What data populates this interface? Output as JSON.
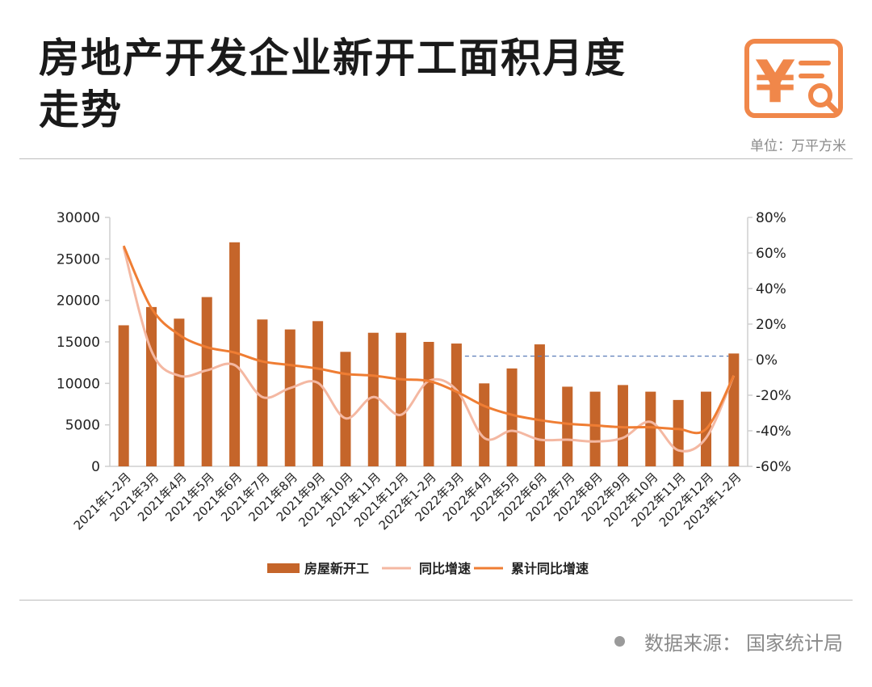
{
  "title": {
    "line1": "房地产开发企业新开工面积月度",
    "line2": "走势"
  },
  "unit": "单位：万平方米",
  "source": {
    "label": "数据来源：",
    "value": "国家统计局"
  },
  "colors": {
    "bar": "#c5652a",
    "yoy": "#f4b8a2",
    "cum": "#ef7d33",
    "ref_line": "#5b7db8",
    "axis": "#cfcfcf",
    "logo": "#f0874a"
  },
  "chart_data": {
    "type": "bar",
    "categories": [
      "2021年1-2月",
      "2021年3月",
      "2021年4月",
      "2021年5月",
      "2021年6月",
      "2021年7月",
      "2021年8月",
      "2021年9月",
      "2021年10月",
      "2021年11月",
      "2021年12月",
      "2022年1-2月",
      "2022年3月",
      "2022年4月",
      "2022年5月",
      "2022年6月",
      "2022年7月",
      "2022年8月",
      "2022年9月",
      "2022年10月",
      "2022年11月",
      "2022年12月",
      "2023年1-2月"
    ],
    "series": [
      {
        "name": "房屋新开工",
        "type": "bar",
        "axis": "left",
        "values": [
          17000,
          19200,
          17800,
          20400,
          27000,
          17700,
          16500,
          17500,
          13800,
          16100,
          16100,
          15000,
          14800,
          10000,
          11800,
          14700,
          9600,
          9000,
          9800,
          9000,
          8000,
          9000,
          13600
        ]
      },
      {
        "name": "同比增速",
        "type": "line",
        "axis": "right",
        "values": [
          63,
          5,
          -9,
          -6,
          -3,
          -21,
          -16,
          -13,
          -33,
          -21,
          -31,
          -12,
          -17,
          -44,
          -40,
          -45,
          -45,
          -46,
          -44,
          -35,
          -51,
          -44,
          -9
        ]
      },
      {
        "name": "累计同比增速",
        "type": "line",
        "axis": "right",
        "values": [
          64,
          29,
          14,
          7,
          4,
          -1,
          -3,
          -5,
          -8,
          -9,
          -11,
          -12,
          -18,
          -26,
          -31,
          -34,
          -36,
          -37,
          -38,
          -38,
          -39,
          -39,
          -9
        ]
      }
    ],
    "reference_line": {
      "axis": "right",
      "value": 2,
      "from_category": "2022年3月",
      "to_category": "2023年1-2月",
      "style": "dashed"
    },
    "y_left": {
      "min": 0,
      "max": 30000,
      "ticks": [
        "0",
        "5000",
        "10000",
        "15000",
        "20000",
        "25000",
        "30000"
      ]
    },
    "y_right": {
      "min": -60,
      "max": 80,
      "ticks": [
        "-60%",
        "-40%",
        "-20%",
        "0%",
        "20%",
        "40%",
        "60%",
        "80%"
      ]
    },
    "legend": {
      "placement": "bottom"
    },
    "grid": false
  }
}
